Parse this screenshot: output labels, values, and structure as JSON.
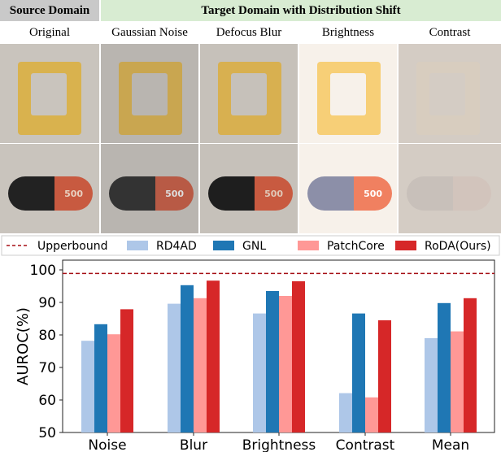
{
  "header": {
    "source": "Source Domain",
    "target": "Target Domain with Distribution Shift"
  },
  "columns": [
    "Original",
    "Gaussian Noise",
    "Defocus Blur",
    "Brightness",
    "Contrast"
  ],
  "pill_text": "500",
  "chart_data": {
    "type": "bar",
    "ylabel": "AUROC(%)",
    "xlabel": "",
    "ylim": [
      50,
      102
    ],
    "yticks": [
      50,
      60,
      70,
      80,
      90,
      100
    ],
    "categories": [
      "Noise",
      "Blur",
      "Brightness",
      "Contrast",
      "Mean"
    ],
    "legend_position": "top",
    "upperbound": {
      "name": "Upperbound",
      "value": 98.9,
      "color": "#a50f15"
    },
    "series": [
      {
        "name": "RD4AD",
        "color": "#aec7e8",
        "values": [
          78.2,
          89.6,
          86.6,
          62.1,
          79.0
        ]
      },
      {
        "name": "GNL",
        "color": "#1f77b4",
        "values": [
          83.3,
          95.3,
          93.5,
          86.6,
          89.8
        ]
      },
      {
        "name": "PatchCore",
        "color": "#ff9896",
        "values": [
          80.2,
          91.3,
          92.0,
          60.8,
          81.1
        ]
      },
      {
        "name": "RoDA(Ours)",
        "color": "#d62728",
        "values": [
          87.9,
          96.7,
          96.5,
          84.5,
          91.3
        ]
      }
    ]
  }
}
